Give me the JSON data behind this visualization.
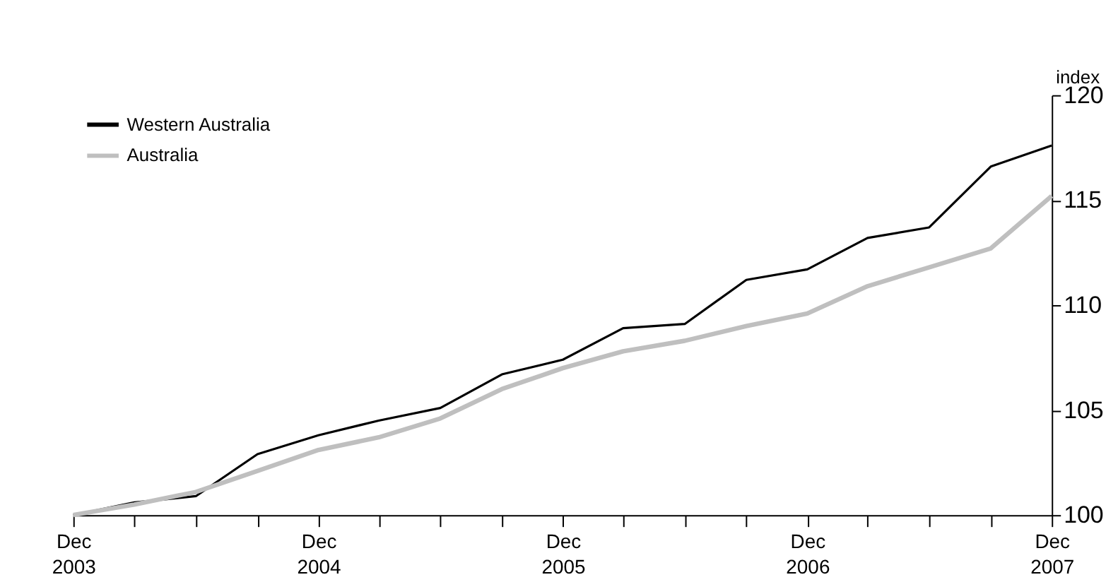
{
  "chart_data": {
    "type": "line",
    "ylabel": "index",
    "x": [
      "2003-12",
      "2004-03",
      "2004-06",
      "2004-09",
      "2004-12",
      "2005-03",
      "2005-06",
      "2005-09",
      "2005-12",
      "2006-03",
      "2006-06",
      "2006-09",
      "2006-12",
      "2007-03",
      "2007-06",
      "2007-09",
      "2007-12"
    ],
    "series": [
      {
        "name": "Western Australia",
        "color": "#000000",
        "values": [
          100.0,
          100.6,
          100.9,
          102.9,
          103.8,
          104.5,
          105.1,
          106.7,
          107.4,
          108.9,
          109.1,
          111.2,
          111.7,
          113.2,
          113.7,
          116.6,
          117.6
        ]
      },
      {
        "name": "Australia",
        "color": "#bfbfbf",
        "values": [
          100.0,
          100.5,
          101.1,
          102.1,
          103.1,
          103.7,
          104.6,
          106.0,
          107.0,
          107.8,
          108.3,
          109.0,
          109.6,
          110.9,
          111.8,
          112.7,
          115.2
        ]
      }
    ],
    "xlim": [
      "2003-12",
      "2007-12"
    ],
    "xticks": [
      {
        "value": "2003-12",
        "label": "Dec 2003"
      },
      {
        "value": "2004-03",
        "label": null
      },
      {
        "value": "2004-06",
        "label": null
      },
      {
        "value": "2004-09",
        "label": null
      },
      {
        "value": "2004-12",
        "label": "Dec 2004"
      },
      {
        "value": "2005-03",
        "label": null
      },
      {
        "value": "2005-06",
        "label": null
      },
      {
        "value": "2005-09",
        "label": null
      },
      {
        "value": "2005-12",
        "label": "Dec 2005"
      },
      {
        "value": "2006-03",
        "label": null
      },
      {
        "value": "2006-06",
        "label": null
      },
      {
        "value": "2006-09",
        "label": null
      },
      {
        "value": "2006-12",
        "label": "Dec 2006"
      },
      {
        "value": "2007-03",
        "label": null
      },
      {
        "value": "2007-06",
        "label": null
      },
      {
        "value": "2007-09",
        "label": null
      },
      {
        "value": "2007-12",
        "label": "Dec 2007"
      }
    ],
    "ylim": [
      100,
      120
    ],
    "yticks": [
      100,
      105,
      110,
      115,
      120
    ],
    "grid": false,
    "legend": "top left",
    "marker": "none",
    "line_style": "solid"
  }
}
